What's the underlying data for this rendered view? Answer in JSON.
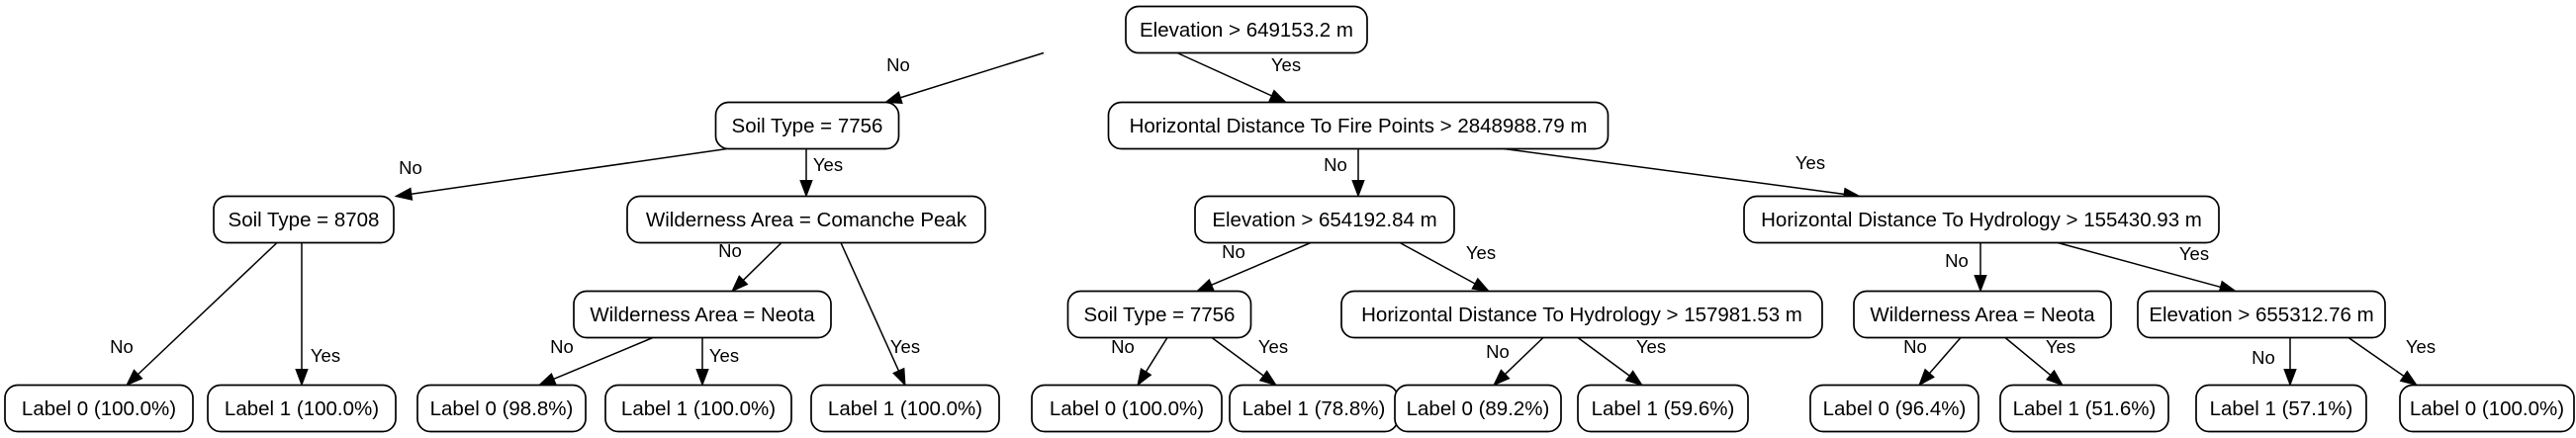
{
  "tree": {
    "nodes": {
      "n0": "Elevation > 649153.2 m",
      "n1": "Soil Type = 7756",
      "n2": "Horizontal Distance To Fire Points > 2848988.79 m",
      "n3": "Soil Type = 8708",
      "n4": "Wilderness Area = Comanche Peak",
      "n5": "Elevation > 654192.84 m",
      "n6": "Horizontal Distance To Hydrology > 155430.93 m",
      "n7": "Wilderness Area = Neota",
      "n8": "Soil Type = 7756",
      "n9": "Horizontal Distance To Hydrology > 157981.53 m",
      "n10": "Wilderness Area = Neota",
      "n11": "Elevation > 655312.76 m",
      "l1": "Label 0 (100.0%)",
      "l2": "Label 1 (100.0%)",
      "l3": "Label 0 (98.8%)",
      "l4": "Label 1 (100.0%)",
      "l5": "Label 1 (100.0%)",
      "l6": "Label 0 (100.0%)",
      "l7": "Label 1 (78.8%)",
      "l8": "Label 0 (89.2%)",
      "l9": "Label 1 (59.6%)",
      "l10": "Label 0 (96.4%)",
      "l11": "Label 1 (51.6%)",
      "l12": "Label 1 (57.1%)",
      "l13": "Label 0 (100.0%)"
    },
    "edge_labels": {
      "no": "No",
      "yes": "Yes"
    }
  }
}
